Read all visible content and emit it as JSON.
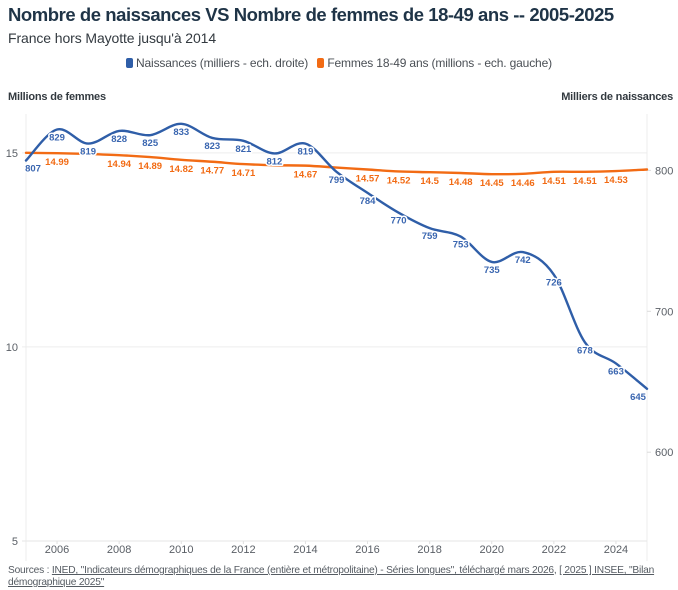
{
  "header": {
    "title": "Nombre de naissances VS Nombre de femmes de 18-49 ans -- 2005-2025",
    "subtitle": "France hors Mayotte jusqu'à 2014"
  },
  "legend": [
    {
      "label": "Naissances (milliers - ech. droite)",
      "color": "#2f5ea8"
    },
    {
      "label": "Femmes 18-49 ans (millions - ech. gauche)",
      "color": "#f26b14"
    }
  ],
  "axis_titles": {
    "left": "Millions de femmes",
    "right": "Milliers de naissances"
  },
  "footer": {
    "prefix": "Sources : ",
    "links": [
      "INED, \"Indicateurs démographiques de la France (entière et métropolitaine) - Séries longues\", téléchargé mars 2026",
      "[ 2025 ] INSEE, \"Bilan démographique 2025\""
    ],
    "separator": ", "
  },
  "chart_data": {
    "type": "line",
    "title": "Nombre de naissances VS Nombre de femmes de 18-49 ans -- 2005-2025",
    "subtitle": "France hors Mayotte jusqu'à 2014",
    "x": [
      2005,
      2006,
      2007,
      2008,
      2009,
      2010,
      2011,
      2012,
      2013,
      2014,
      2015,
      2016,
      2017,
      2018,
      2019,
      2020,
      2021,
      2022,
      2023,
      2024,
      2025
    ],
    "x_ticks": [
      2006,
      2008,
      2010,
      2012,
      2014,
      2016,
      2018,
      2020,
      2022,
      2024
    ],
    "x_range": [
      2005,
      2025
    ],
    "y_left": {
      "label": "Millions de femmes",
      "range": [
        5,
        16
      ],
      "ticks": [
        5,
        10,
        15
      ]
    },
    "y_right": {
      "label": "Milliers de naissances",
      "range": [
        537,
        840
      ],
      "ticks": [
        600,
        700,
        800
      ]
    },
    "grid": "horizontal (left-axis ticks)",
    "legend_position": "top-center",
    "series": [
      {
        "name": "Naissances (milliers - ech. droite)",
        "axis": "right",
        "color": "#2f5ea8",
        "label_color": "#3a66b0",
        "values": [
          807,
          829,
          819,
          828,
          825,
          833,
          823,
          821,
          812,
          819,
          799,
          784,
          770,
          759,
          753,
          735,
          742,
          726,
          678,
          663,
          645
        ],
        "label_visible": [
          true,
          true,
          true,
          true,
          true,
          true,
          true,
          true,
          true,
          true,
          true,
          true,
          true,
          true,
          true,
          true,
          true,
          true,
          true,
          true,
          true
        ]
      },
      {
        "name": "Femmes 18-49 ans (millions - ech. gauche)",
        "axis": "left",
        "color": "#f26b14",
        "label_color": "#f26b14",
        "values": [
          15.0,
          14.99,
          14.97,
          14.94,
          14.89,
          14.82,
          14.77,
          14.71,
          14.68,
          14.67,
          14.62,
          14.57,
          14.52,
          14.5,
          14.48,
          14.45,
          14.46,
          14.51,
          14.51,
          14.53,
          14.57
        ],
        "label_visible": [
          false,
          true,
          false,
          true,
          true,
          true,
          true,
          true,
          false,
          true,
          false,
          true,
          true,
          true,
          true,
          true,
          true,
          true,
          true,
          true,
          false
        ]
      }
    ]
  }
}
